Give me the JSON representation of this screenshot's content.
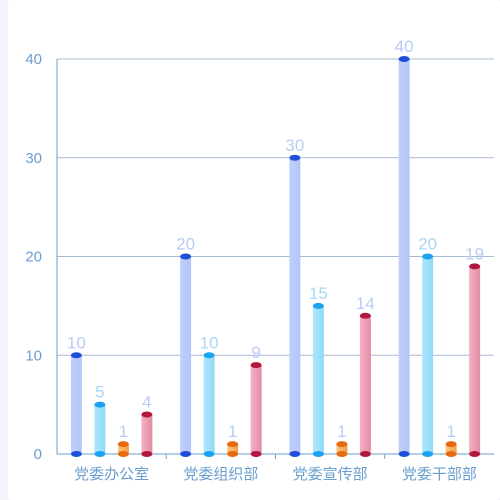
{
  "chart_data": {
    "type": "bar",
    "categories": [
      "党委办公室",
      "党委组织部",
      "党委宣传部",
      "党委干部部"
    ],
    "series": [
      {
        "values": [
          10,
          20,
          30,
          40
        ],
        "color_top": "#1f4fd8",
        "color_light": "#bfcffb",
        "color_dark": "#b3c6f8",
        "label_color": "#b9cbf5"
      },
      {
        "values": [
          5,
          10,
          15,
          20
        ],
        "color_top": "#1ba3f2",
        "color_light": "#aee6ff",
        "color_dark": "#8fdaf7",
        "label_color": "#a8d8f5"
      },
      {
        "values": [
          1,
          1,
          1,
          1
        ],
        "color_top": "#e86a0e",
        "color_light": "#f9c887",
        "color_dark": "#f39e45",
        "label_color": "#b9cbf5"
      },
      {
        "values": [
          4,
          9,
          14,
          19
        ],
        "color_top": "#b3163f",
        "color_light": "#f4b1c3",
        "color_dark": "#e28ca4",
        "label_color": "#b9cbf5"
      }
    ],
    "yticks": [
      0,
      10,
      20,
      30,
      40
    ],
    "ylim": [
      0,
      40
    ],
    "grid": true,
    "xlabel": "",
    "ylabel": "",
    "title": "",
    "axis_color": "#6a9fd0",
    "grid_color": "#a9bcd3"
  }
}
